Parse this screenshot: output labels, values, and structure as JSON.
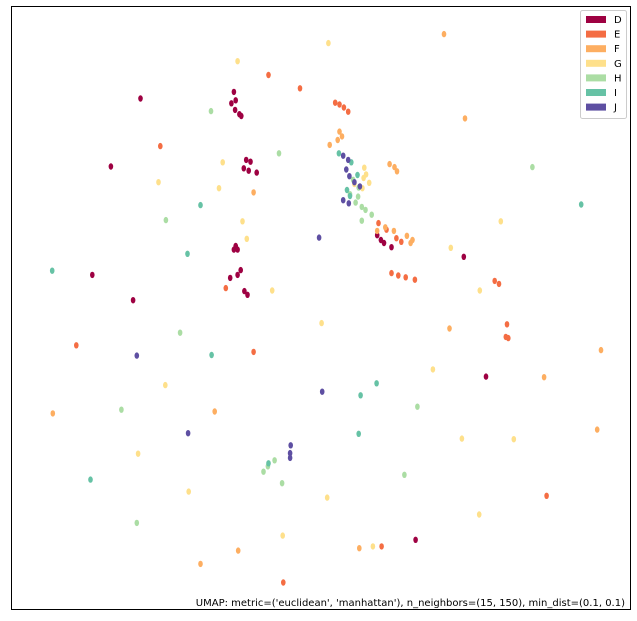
{
  "chart_data": {
    "type": "scatter",
    "title": "",
    "xlabel": "",
    "ylabel": "",
    "grid": false,
    "axes_ticks": false,
    "legend_placement": "top-right",
    "caption": "UMAP: metric=('euclidean', 'manhattan'), n_neighbors=(15, 150), min_dist=(0.1, 0.1)",
    "xlim": [
      0,
      100
    ],
    "ylim": [
      0,
      100
    ],
    "series": [
      {
        "name": "D",
        "color": "#9e0142",
        "points": [
          [
            20.8,
            84.8
          ],
          [
            16.0,
            73.5
          ],
          [
            13.0,
            55.5
          ],
          [
            19.6,
            51.3
          ],
          [
            35.9,
            85.9
          ],
          [
            36.2,
            84.5
          ],
          [
            35.5,
            84.0
          ],
          [
            36.1,
            82.9
          ],
          [
            36.8,
            82.2
          ],
          [
            37.1,
            81.9
          ],
          [
            37.9,
            74.6
          ],
          [
            38.6,
            74.3
          ],
          [
            37.5,
            73.2
          ],
          [
            38.3,
            72.8
          ],
          [
            39.6,
            72.5
          ],
          [
            35.9,
            59.7
          ],
          [
            36.2,
            60.3
          ],
          [
            36.5,
            59.7
          ],
          [
            37.0,
            56.3
          ],
          [
            36.5,
            55.5
          ],
          [
            35.3,
            55.0
          ],
          [
            37.6,
            52.8
          ],
          [
            38.1,
            52.2
          ],
          [
            59.1,
            62.1
          ],
          [
            59.7,
            61.3
          ],
          [
            60.2,
            60.8
          ],
          [
            61.4,
            60.1
          ],
          [
            73.1,
            58.5
          ],
          [
            76.7,
            38.6
          ],
          [
            65.3,
            11.5
          ]
        ]
      },
      {
        "name": "E",
        "color": "#f46d43",
        "points": [
          [
            24.0,
            76.9
          ],
          [
            41.5,
            88.7
          ],
          [
            46.6,
            86.5
          ],
          [
            52.3,
            84.1
          ],
          [
            53.0,
            83.8
          ],
          [
            53.7,
            83.3
          ],
          [
            54.4,
            82.6
          ],
          [
            34.6,
            53.3
          ],
          [
            10.4,
            43.8
          ],
          [
            39.1,
            42.7
          ],
          [
            59.3,
            64.1
          ],
          [
            60.6,
            63.0
          ],
          [
            62.2,
            61.6
          ],
          [
            63.0,
            61.0
          ],
          [
            61.4,
            55.8
          ],
          [
            62.5,
            55.4
          ],
          [
            63.7,
            55.1
          ],
          [
            65.2,
            54.7
          ],
          [
            78.8,
            54.0
          ],
          [
            78.1,
            54.5
          ],
          [
            80.1,
            47.3
          ],
          [
            79.9,
            45.2
          ],
          [
            80.3,
            45.0
          ],
          [
            59.8,
            10.4
          ],
          [
            43.9,
            4.4
          ],
          [
            86.5,
            18.8
          ]
        ]
      },
      {
        "name": "F",
        "color": "#fdae61",
        "points": [
          [
            69.9,
            95.5
          ],
          [
            73.3,
            81.5
          ],
          [
            39.1,
            69.2
          ],
          [
            51.4,
            77.1
          ],
          [
            52.7,
            77.9
          ],
          [
            53.4,
            78.5
          ],
          [
            53.0,
            79.3
          ],
          [
            61.1,
            73.9
          ],
          [
            61.9,
            73.4
          ],
          [
            62.3,
            72.7
          ],
          [
            59.1,
            62.8
          ],
          [
            60.4,
            63.4
          ],
          [
            61.8,
            62.8
          ],
          [
            63.9,
            62.0
          ],
          [
            64.8,
            61.3
          ],
          [
            64.5,
            60.8
          ],
          [
            70.8,
            46.6
          ],
          [
            95.3,
            43.0
          ],
          [
            86.1,
            38.5
          ],
          [
            94.7,
            29.8
          ],
          [
            6.6,
            32.5
          ],
          [
            32.8,
            32.8
          ],
          [
            36.6,
            9.7
          ],
          [
            56.2,
            10.1
          ],
          [
            30.5,
            7.5
          ]
        ]
      },
      {
        "name": "G",
        "color": "#fee08b",
        "points": [
          [
            51.2,
            94.0
          ],
          [
            36.5,
            91.0
          ],
          [
            34.1,
            74.2
          ],
          [
            37.3,
            64.4
          ],
          [
            23.7,
            70.9
          ],
          [
            33.5,
            69.9
          ],
          [
            57.0,
            73.3
          ],
          [
            57.3,
            72.2
          ],
          [
            56.9,
            71.6
          ],
          [
            57.8,
            70.8
          ],
          [
            55.4,
            70.6
          ],
          [
            56.7,
            69.9
          ],
          [
            38.0,
            61.5
          ],
          [
            42.1,
            52.9
          ],
          [
            50.1,
            47.5
          ],
          [
            71.0,
            60.0
          ],
          [
            79.1,
            64.4
          ],
          [
            75.7,
            52.9
          ],
          [
            68.1,
            39.8
          ],
          [
            24.8,
            37.2
          ],
          [
            20.4,
            25.8
          ],
          [
            28.6,
            19.5
          ],
          [
            51.0,
            18.5
          ],
          [
            72.8,
            28.3
          ],
          [
            81.2,
            28.2
          ],
          [
            75.6,
            15.7
          ],
          [
            58.4,
            10.4
          ],
          [
            43.8,
            12.2
          ]
        ]
      },
      {
        "name": "H",
        "color": "#abdda4",
        "points": [
          [
            32.2,
            82.7
          ],
          [
            43.2,
            75.7
          ],
          [
            55.2,
            71.3
          ],
          [
            56.1,
            70.0
          ],
          [
            54.7,
            68.9
          ],
          [
            56.0,
            68.5
          ],
          [
            55.6,
            67.5
          ],
          [
            56.6,
            66.8
          ],
          [
            57.2,
            66.3
          ],
          [
            58.2,
            65.5
          ],
          [
            56.6,
            64.5
          ],
          [
            24.9,
            64.6
          ],
          [
            27.2,
            45.9
          ],
          [
            42.5,
            24.7
          ],
          [
            41.4,
            23.7
          ],
          [
            40.7,
            22.8
          ],
          [
            43.7,
            20.9
          ],
          [
            65.6,
            33.6
          ],
          [
            63.5,
            22.3
          ],
          [
            17.7,
            33.1
          ],
          [
            20.2,
            14.3
          ],
          [
            84.2,
            73.4
          ]
        ]
      },
      {
        "name": "I",
        "color": "#66c2a5",
        "points": [
          [
            52.9,
            75.7
          ],
          [
            54.9,
            74.2
          ],
          [
            55.9,
            72.1
          ],
          [
            54.2,
            69.6
          ],
          [
            54.7,
            68.6
          ],
          [
            30.5,
            67.1
          ],
          [
            28.4,
            59.0
          ],
          [
            92.1,
            67.2
          ],
          [
            6.5,
            56.2
          ],
          [
            32.3,
            42.2
          ],
          [
            59.0,
            37.5
          ],
          [
            56.1,
            29.1
          ],
          [
            41.5,
            24.2
          ],
          [
            12.7,
            21.5
          ],
          [
            56.4,
            35.5
          ]
        ]
      },
      {
        "name": "J",
        "color": "#5e4fa2",
        "points": [
          [
            53.6,
            75.3
          ],
          [
            54.4,
            74.6
          ],
          [
            54.1,
            73.0
          ],
          [
            54.6,
            71.9
          ],
          [
            55.4,
            70.9
          ],
          [
            56.3,
            70.2
          ],
          [
            54.5,
            67.4
          ],
          [
            53.6,
            67.9
          ],
          [
            49.7,
            61.7
          ],
          [
            20.2,
            42.1
          ],
          [
            50.2,
            36.1
          ],
          [
            28.5,
            29.2
          ],
          [
            45.1,
            27.2
          ],
          [
            45.0,
            25.9
          ],
          [
            45.0,
            25.1
          ]
        ]
      }
    ]
  }
}
